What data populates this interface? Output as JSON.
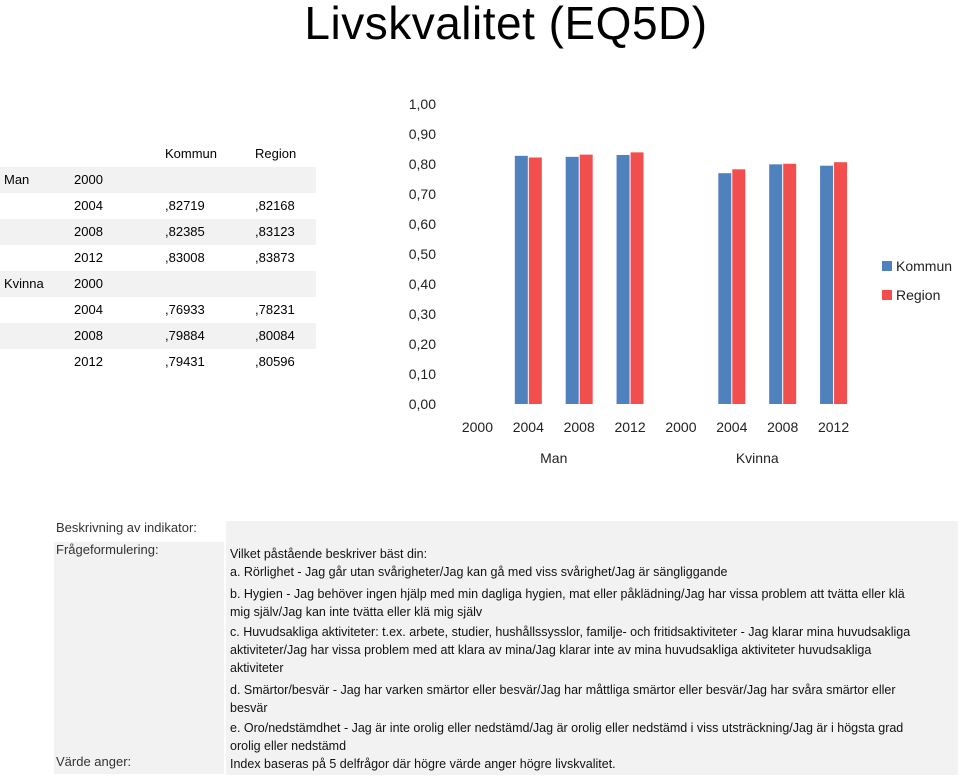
{
  "title": "Livskvalitet (EQ5D)",
  "table": {
    "headers": {
      "kommun": "Kommun",
      "region": "Region"
    },
    "rows": [
      {
        "group": "Man",
        "year": "2000",
        "kommun": "",
        "region": ""
      },
      {
        "group": "",
        "year": "2004",
        "kommun": ",82719",
        "region": ",82168"
      },
      {
        "group": "",
        "year": "2008",
        "kommun": ",82385",
        "region": ",83123"
      },
      {
        "group": "",
        "year": "2012",
        "kommun": ",83008",
        "region": ",83873"
      },
      {
        "group": "Kvinna",
        "year": "2000",
        "kommun": "",
        "region": ""
      },
      {
        "group": "",
        "year": "2004",
        "kommun": ",76933",
        "region": ",78231"
      },
      {
        "group": "",
        "year": "2008",
        "kommun": ",79884",
        "region": ",80084"
      },
      {
        "group": "",
        "year": "2012",
        "kommun": ",79431",
        "region": ",80596"
      }
    ]
  },
  "chart_data": {
    "type": "bar",
    "categories": [
      "2000",
      "2004",
      "2008",
      "2012",
      "2000",
      "2004",
      "2008",
      "2012"
    ],
    "groups": [
      {
        "label": "Man",
        "categories": 4
      },
      {
        "label": "Kvinna",
        "categories": 4
      }
    ],
    "series": [
      {
        "name": "Kommun",
        "color": "#4f81bd",
        "values": [
          null,
          0.82719,
          0.82385,
          0.83008,
          null,
          0.76933,
          0.79884,
          0.79431
        ]
      },
      {
        "name": "Region",
        "color": "#f24e4e",
        "values": [
          null,
          0.82168,
          0.83123,
          0.83873,
          null,
          0.78231,
          0.80084,
          0.80596
        ]
      }
    ],
    "ylim": [
      0,
      1
    ],
    "yticks": [
      "0,00",
      "0,10",
      "0,20",
      "0,30",
      "0,40",
      "0,50",
      "0,60",
      "0,70",
      "0,80",
      "0,90",
      "1,00"
    ],
    "legend": "right",
    "grid": false
  },
  "description": {
    "label_beskrivning": "Beskrivning av indikator:",
    "label_fraga": "Frågeformulering:",
    "label_varde": "Värde anger:",
    "lines": [
      "Vilket påstående beskriver bäst din:",
      "a. Rörlighet - Jag går utan svårigheter/Jag kan gå med viss svårighet/Jag är sängliggande",
      "b. Hygien - Jag behöver ingen hjälp med min dagliga hygien, mat eller påklädning/Jag har vissa problem att tvätta eller klä",
      "mig själv/Jag kan inte tvätta eller klä mig själv",
      "c. Huvudsakliga aktiviteter: t.ex. arbete, studier, hushållssysslor, familje- och fritidsaktiviteter - Jag klarar mina huvudsakliga",
      "aktiviteter/Jag har vissa problem med att klara av mina/Jag klarar inte av mina huvudsakliga aktiviteter huvudsakliga",
      "aktiviteter",
      "d. Smärtor/besvär - Jag har varken smärtor eller besvär/Jag har måttliga smärtor eller besvär/Jag har svåra smärtor eller",
      "besvär",
      "e. Oro/nedstämdhet - Jag är inte orolig eller nedstämd/Jag är orolig eller nedstämd i viss utsträckning/Jag är i högsta grad",
      "orolig eller nedstämd"
    ],
    "varde_text": "Index baseras på 5 delfrågor där högre värde anger högre livskvalitet."
  }
}
